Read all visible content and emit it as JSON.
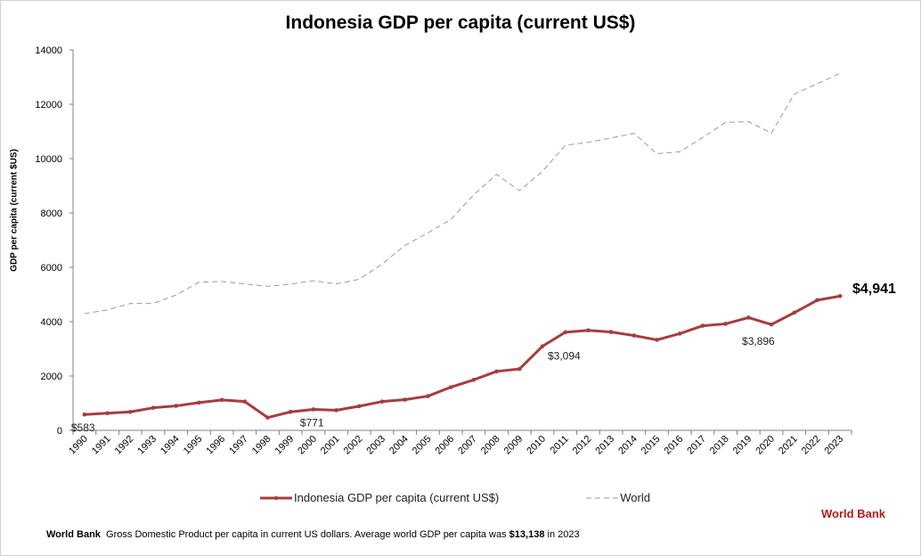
{
  "colors": {
    "indonesia": "#a83c3c",
    "world": "#9a9a9a",
    "axis": "#808080",
    "brand": "#b01c1c"
  },
  "chart_data": {
    "type": "line",
    "title": "Indonesia GDP per capita (current US$)",
    "ylabel": "GDP per capita (current $US)",
    "xlabel": "",
    "ylim": [
      0,
      14000
    ],
    "yticks": [
      "0",
      "2000",
      "4000",
      "6000",
      "8000",
      "10000",
      "12000",
      "14000"
    ],
    "x": [
      "1990",
      "1991",
      "1992",
      "1993",
      "1994",
      "1995",
      "1996",
      "1997",
      "1998",
      "1999",
      "2000",
      "2001",
      "2002",
      "2003",
      "2004",
      "2005",
      "2006",
      "2007",
      "2008",
      "2009",
      "2010",
      "2011",
      "2012",
      "2013",
      "2014",
      "2015",
      "2016",
      "2017",
      "2018",
      "2019",
      "2020",
      "2021",
      "2022",
      "2023"
    ],
    "series": [
      {
        "name": "Indonesia GDP per capita (current US$)",
        "style": "solid-markers",
        "values": [
          583,
          630,
          680,
          830,
          900,
          1020,
          1120,
          1060,
          470,
          680,
          771,
          740,
          890,
          1060,
          1130,
          1260,
          1590,
          1860,
          2170,
          2260,
          3094,
          3610,
          3680,
          3620,
          3490,
          3330,
          3560,
          3850,
          3920,
          4150,
          3896,
          4330,
          4790,
          4941
        ]
      },
      {
        "name": "World",
        "style": "dashed",
        "values": [
          4300,
          4430,
          4670,
          4670,
          4980,
          5450,
          5480,
          5390,
          5300,
          5380,
          5510,
          5390,
          5560,
          6120,
          6810,
          7270,
          7760,
          8670,
          9420,
          8820,
          9530,
          10490,
          10600,
          10760,
          10930,
          10180,
          10250,
          10780,
          11330,
          11360,
          10940,
          12370,
          12750,
          13138
        ]
      }
    ],
    "annotations": [
      {
        "text": "$583",
        "year": "1990",
        "value": 583
      },
      {
        "text": "$771",
        "year": "2000",
        "value": 771
      },
      {
        "text": "$3,094",
        "year": "2010",
        "value": 3094
      },
      {
        "text": "$3,896",
        "year": "2020",
        "value": 3896
      },
      {
        "text": "$4,941",
        "year": "2023",
        "value": 4941
      }
    ],
    "legend_position": "bottom",
    "grid": false
  },
  "legend": {
    "indonesia_label": "Indonesia GDP per capita (current US$)",
    "world_label": "World"
  },
  "footer": {
    "source_bold": "World Bank",
    "text": "Gross Domestic Product per capita in current US dollars.  Average world GDP per capita was ",
    "highlight": "$13,138",
    "suffix": " in 2023"
  },
  "brand": "World Bank"
}
